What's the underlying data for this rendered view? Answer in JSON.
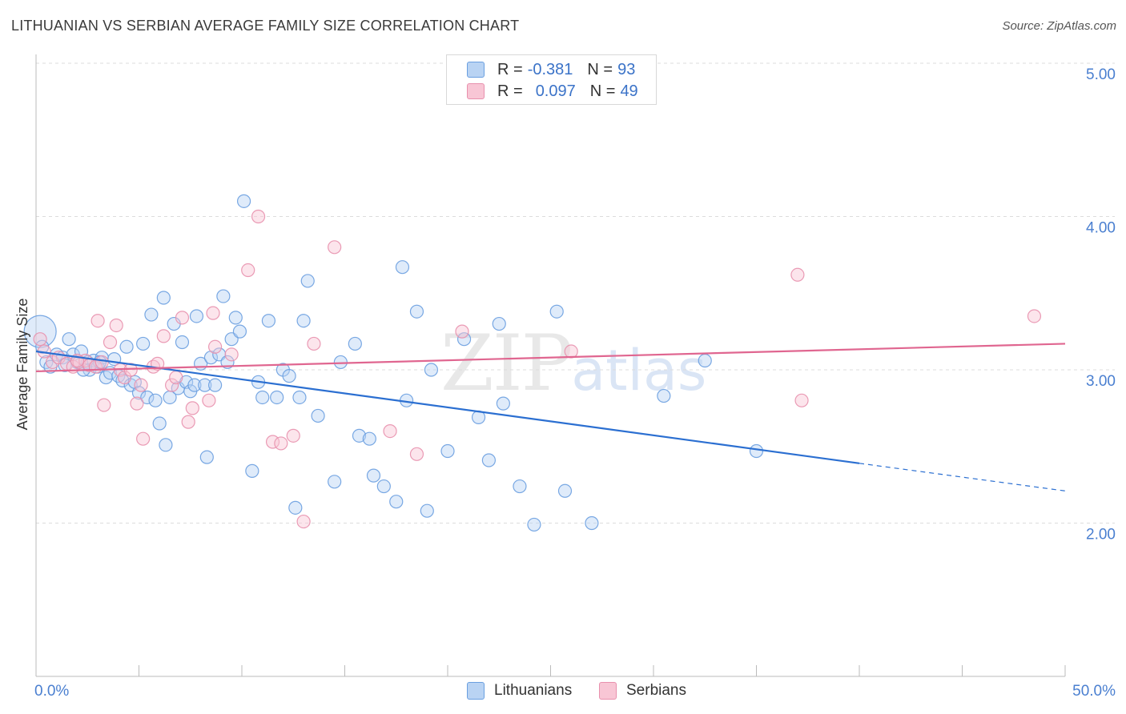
{
  "title": "LITHUANIAN VS SERBIAN AVERAGE FAMILY SIZE CORRELATION CHART",
  "source": "Source: ZipAtlas.com",
  "watermark": {
    "zip": "ZIP",
    "atlas": "atlas"
  },
  "legend": {
    "rows": [
      {
        "r_label": "R =",
        "r_value": "-0.381",
        "n_label": "N =",
        "n_value": "93",
        "color": "#a9c8f0"
      },
      {
        "r_label": "R =",
        "r_value": "0.097",
        "n_label": "N =",
        "n_value": "49",
        "color": "#f6b8cb"
      }
    ]
  },
  "bottom_legend": [
    {
      "label": "Lithuanians",
      "color": "#a9c8f0"
    },
    {
      "label": "Serbians",
      "color": "#f6b8cb"
    }
  ],
  "chart_data": {
    "type": "scatter",
    "title": "LITHUANIAN VS SERBIAN AVERAGE FAMILY SIZE CORRELATION CHART",
    "xlabel": "",
    "ylabel": "Average Family Size",
    "xlim": [
      0,
      50
    ],
    "ylim": [
      1.0,
      5.1
    ],
    "x_tick_labels": [
      "0.0%",
      "50.0%"
    ],
    "y_ticks": [
      2.0,
      3.0,
      4.0,
      5.0
    ],
    "y_tick_labels": [
      "2.00",
      "3.00",
      "4.00",
      "5.00"
    ],
    "grid": true,
    "series": [
      {
        "name": "Lithuanians",
        "color": "#6a9fe0",
        "fill": "#b9d3f3",
        "trend": {
          "x0": 0,
          "y0": 3.12,
          "x1": 40,
          "y1": 2.39,
          "dash_to_x": 50,
          "dash_to_y": 2.21,
          "color": "#2b6fd1"
        },
        "points": [
          [
            0.2,
            3.25
          ],
          [
            0.5,
            3.05
          ],
          [
            0.7,
            3.02
          ],
          [
            1.0,
            3.1
          ],
          [
            1.3,
            3.08
          ],
          [
            1.6,
            3.2
          ],
          [
            1.8,
            3.1
          ],
          [
            2.0,
            3.05
          ],
          [
            2.2,
            3.12
          ],
          [
            2.5,
            3.05
          ],
          [
            2.6,
            3.0
          ],
          [
            2.8,
            3.06
          ],
          [
            3.0,
            3.02
          ],
          [
            3.2,
            3.08
          ],
          [
            3.4,
            2.95
          ],
          [
            3.6,
            2.98
          ],
          [
            3.8,
            3.07
          ],
          [
            4.0,
            2.96
          ],
          [
            4.2,
            2.93
          ],
          [
            4.4,
            3.15
          ],
          [
            4.6,
            2.9
          ],
          [
            4.8,
            2.92
          ],
          [
            5.0,
            2.85
          ],
          [
            5.2,
            3.17
          ],
          [
            5.4,
            2.82
          ],
          [
            5.6,
            3.36
          ],
          [
            5.8,
            2.8
          ],
          [
            6.0,
            2.65
          ],
          [
            6.2,
            3.47
          ],
          [
            6.3,
            2.51
          ],
          [
            6.5,
            2.82
          ],
          [
            6.7,
            3.3
          ],
          [
            6.9,
            2.88
          ],
          [
            7.1,
            3.18
          ],
          [
            7.3,
            2.92
          ],
          [
            7.5,
            2.86
          ],
          [
            7.7,
            2.9
          ],
          [
            7.8,
            3.35
          ],
          [
            8.0,
            3.04
          ],
          [
            8.2,
            2.9
          ],
          [
            8.3,
            2.43
          ],
          [
            8.5,
            3.08
          ],
          [
            8.7,
            2.9
          ],
          [
            8.9,
            3.1
          ],
          [
            9.1,
            3.48
          ],
          [
            9.3,
            3.05
          ],
          [
            9.5,
            3.2
          ],
          [
            9.7,
            3.34
          ],
          [
            9.9,
            3.25
          ],
          [
            10.1,
            4.1
          ],
          [
            10.5,
            2.34
          ],
          [
            10.8,
            2.92
          ],
          [
            11.0,
            2.82
          ],
          [
            11.3,
            3.32
          ],
          [
            11.7,
            2.82
          ],
          [
            12.0,
            3.0
          ],
          [
            12.3,
            2.96
          ],
          [
            12.8,
            2.82
          ],
          [
            12.6,
            2.1
          ],
          [
            13.0,
            3.32
          ],
          [
            13.2,
            3.58
          ],
          [
            13.7,
            2.7
          ],
          [
            14.5,
            2.27
          ],
          [
            14.8,
            3.05
          ],
          [
            15.5,
            3.17
          ],
          [
            15.7,
            2.57
          ],
          [
            16.2,
            2.55
          ],
          [
            16.4,
            2.31
          ],
          [
            16.9,
            2.24
          ],
          [
            17.5,
            2.14
          ],
          [
            17.8,
            3.67
          ],
          [
            18.0,
            2.8
          ],
          [
            18.5,
            3.38
          ],
          [
            19.0,
            2.08
          ],
          [
            19.2,
            3.0
          ],
          [
            20.0,
            2.47
          ],
          [
            20.8,
            3.2
          ],
          [
            21.5,
            2.69
          ],
          [
            22.0,
            2.41
          ],
          [
            22.5,
            3.3
          ],
          [
            22.7,
            2.78
          ],
          [
            23.5,
            2.24
          ],
          [
            24.2,
            1.99
          ],
          [
            25.3,
            3.38
          ],
          [
            25.7,
            2.21
          ],
          [
            27.0,
            2.0
          ],
          [
            30.5,
            2.83
          ],
          [
            32.5,
            3.06
          ],
          [
            35.0,
            2.47
          ],
          [
            0.3,
            3.15
          ],
          [
            1.4,
            3.03
          ],
          [
            2.3,
            3.0
          ],
          [
            3.1,
            3.05
          ]
        ]
      },
      {
        "name": "Serbians",
        "color": "#e890ad",
        "fill": "#f8c6d5",
        "trend": {
          "x0": 0,
          "y0": 2.99,
          "x1": 50,
          "y1": 3.17,
          "color": "#e06690"
        },
        "points": [
          [
            0.2,
            3.2
          ],
          [
            0.4,
            3.12
          ],
          [
            0.8,
            3.05
          ],
          [
            1.1,
            3.08
          ],
          [
            1.5,
            3.04
          ],
          [
            1.8,
            3.02
          ],
          [
            2.1,
            3.05
          ],
          [
            2.4,
            3.06
          ],
          [
            2.6,
            3.03
          ],
          [
            2.9,
            3.02
          ],
          [
            3.0,
            3.32
          ],
          [
            3.2,
            3.05
          ],
          [
            3.3,
            2.77
          ],
          [
            3.6,
            3.18
          ],
          [
            3.9,
            3.29
          ],
          [
            4.1,
            3.0
          ],
          [
            4.3,
            2.95
          ],
          [
            4.6,
            3.0
          ],
          [
            4.9,
            2.78
          ],
          [
            5.1,
            2.9
          ],
          [
            5.2,
            2.55
          ],
          [
            5.7,
            3.02
          ],
          [
            5.9,
            3.04
          ],
          [
            6.2,
            3.22
          ],
          [
            6.6,
            2.9
          ],
          [
            6.8,
            2.95
          ],
          [
            7.1,
            3.34
          ],
          [
            7.4,
            2.66
          ],
          [
            7.6,
            2.75
          ],
          [
            8.4,
            2.8
          ],
          [
            8.6,
            3.37
          ],
          [
            8.7,
            3.15
          ],
          [
            9.5,
            3.1
          ],
          [
            10.3,
            3.65
          ],
          [
            10.8,
            4.0
          ],
          [
            11.5,
            2.53
          ],
          [
            11.9,
            2.52
          ],
          [
            12.5,
            2.57
          ],
          [
            13.0,
            2.01
          ],
          [
            13.5,
            3.17
          ],
          [
            14.5,
            3.8
          ],
          [
            17.2,
            2.6
          ],
          [
            18.5,
            2.45
          ],
          [
            20.7,
            3.25
          ],
          [
            26.0,
            3.12
          ],
          [
            37.0,
            3.62
          ],
          [
            37.2,
            2.8
          ],
          [
            48.5,
            3.35
          ],
          [
            2.0,
            3.06
          ]
        ]
      }
    ]
  }
}
